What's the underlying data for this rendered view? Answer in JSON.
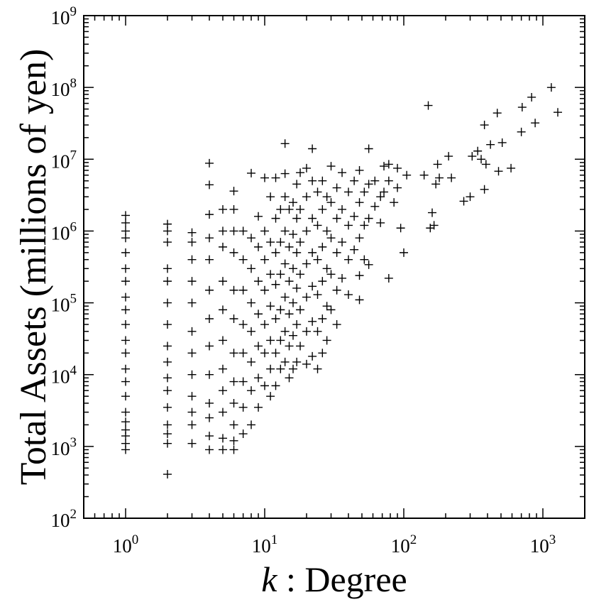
{
  "chart_data": {
    "type": "scatter",
    "title": "",
    "xlabel_var": "k",
    "xlabel_rest": " : Degree",
    "ylabel": "Total Assets (millions of yen)",
    "x_scale": "log",
    "y_scale": "log",
    "xlim": [
      0.5,
      2000
    ],
    "ylim": [
      100,
      1000000000
    ],
    "x_ticks": [
      {
        "base": "10",
        "exp": "0",
        "value": 1
      },
      {
        "base": "10",
        "exp": "1",
        "value": 10
      },
      {
        "base": "10",
        "exp": "2",
        "value": 100
      },
      {
        "base": "10",
        "exp": "3",
        "value": 1000
      }
    ],
    "y_ticks": [
      {
        "base": "10",
        "exp": "2",
        "value": 100
      },
      {
        "base": "10",
        "exp": "3",
        "value": 1000
      },
      {
        "base": "10",
        "exp": "4",
        "value": 10000
      },
      {
        "base": "10",
        "exp": "5",
        "value": 100000
      },
      {
        "base": "10",
        "exp": "6",
        "value": 1000000
      },
      {
        "base": "10",
        "exp": "7",
        "value": 10000000
      },
      {
        "base": "10",
        "exp": "8",
        "value": 100000000
      },
      {
        "base": "10",
        "exp": "9",
        "value": 1000000000
      }
    ],
    "marker": "+",
    "marker_color": "#000000",
    "grid": false,
    "legend": "none",
    "points": [
      [
        1,
        1700
      ],
      [
        1,
        1400
      ],
      [
        1,
        1100
      ],
      [
        1,
        900
      ],
      [
        1,
        1650000
      ],
      [
        1,
        1300000
      ],
      [
        1,
        1000000
      ],
      [
        1,
        800000
      ],
      [
        1,
        500000
      ],
      [
        1,
        300000
      ],
      [
        1,
        200000
      ],
      [
        1,
        120000
      ],
      [
        1,
        80000
      ],
      [
        1,
        50000
      ],
      [
        1,
        30000
      ],
      [
        1,
        20000
      ],
      [
        1,
        12000
      ],
      [
        1,
        8000
      ],
      [
        1,
        5000
      ],
      [
        1,
        3000
      ],
      [
        1,
        2200
      ],
      [
        2,
        410
      ],
      [
        2,
        1100
      ],
      [
        2,
        1500
      ],
      [
        2,
        2000
      ],
      [
        2,
        1250000
      ],
      [
        2,
        1000000
      ],
      [
        2,
        700000
      ],
      [
        2,
        300000
      ],
      [
        2,
        200000
      ],
      [
        2,
        100000
      ],
      [
        2,
        50000
      ],
      [
        2,
        25000
      ],
      [
        2,
        15000
      ],
      [
        2,
        9000
      ],
      [
        2,
        6000
      ],
      [
        2,
        3500
      ],
      [
        3,
        1100
      ],
      [
        3,
        2000
      ],
      [
        3,
        950000
      ],
      [
        3,
        700000
      ],
      [
        3,
        400000
      ],
      [
        3,
        200000
      ],
      [
        3,
        100000
      ],
      [
        3,
        40000
      ],
      [
        3,
        20000
      ],
      [
        3,
        10000
      ],
      [
        3,
        5000
      ],
      [
        3,
        3000
      ],
      [
        4,
        900
      ],
      [
        4,
        1400
      ],
      [
        4,
        8800000
      ],
      [
        4,
        4400000
      ],
      [
        4,
        1700000
      ],
      [
        4,
        800000
      ],
      [
        4,
        400000
      ],
      [
        4,
        150000
      ],
      [
        4,
        60000
      ],
      [
        4,
        25000
      ],
      [
        4,
        10000
      ],
      [
        4,
        4000
      ],
      [
        4,
        2500
      ],
      [
        5,
        900
      ],
      [
        5,
        1300
      ],
      [
        5,
        2000000
      ],
      [
        5,
        1000000
      ],
      [
        5,
        600000
      ],
      [
        5,
        200000
      ],
      [
        5,
        80000
      ],
      [
        5,
        30000
      ],
      [
        5,
        12000
      ],
      [
        5,
        6000
      ],
      [
        5,
        3000
      ],
      [
        6,
        900
      ],
      [
        6,
        1200
      ],
      [
        6,
        3600000
      ],
      [
        6,
        2000000
      ],
      [
        6,
        1000000
      ],
      [
        6,
        500000
      ],
      [
        6,
        150000
      ],
      [
        6,
        60000
      ],
      [
        6,
        20000
      ],
      [
        6,
        8000
      ],
      [
        6,
        4000
      ],
      [
        6,
        2000
      ],
      [
        7,
        1500
      ],
      [
        7,
        1000000
      ],
      [
        7,
        400000
      ],
      [
        7,
        150000
      ],
      [
        7,
        50000
      ],
      [
        7,
        20000
      ],
      [
        7,
        8000
      ],
      [
        7,
        3500
      ],
      [
        8,
        6400000
      ],
      [
        8,
        2000
      ],
      [
        8,
        800000
      ],
      [
        8,
        300000
      ],
      [
        8,
        100000
      ],
      [
        8,
        40000
      ],
      [
        8,
        15000
      ],
      [
        8,
        6000
      ],
      [
        9,
        1600000
      ],
      [
        9,
        600000
      ],
      [
        9,
        200000
      ],
      [
        9,
        70000
      ],
      [
        9,
        25000
      ],
      [
        9,
        9000
      ],
      [
        9,
        3500
      ],
      [
        10,
        5500000
      ],
      [
        10,
        1000000
      ],
      [
        10,
        400000
      ],
      [
        10,
        150000
      ],
      [
        10,
        50000
      ],
      [
        10,
        20000
      ],
      [
        10,
        7000
      ],
      [
        11,
        3000000
      ],
      [
        11,
        700000
      ],
      [
        11,
        250000
      ],
      [
        11,
        90000
      ],
      [
        11,
        30000
      ],
      [
        11,
        12000
      ],
      [
        11,
        5000
      ],
      [
        12,
        5500000
      ],
      [
        12,
        1500000
      ],
      [
        12,
        500000
      ],
      [
        12,
        180000
      ],
      [
        12,
        60000
      ],
      [
        12,
        20000
      ],
      [
        12,
        7000
      ],
      [
        13,
        2000000
      ],
      [
        13,
        700000
      ],
      [
        13,
        250000
      ],
      [
        13,
        80000
      ],
      [
        13,
        30000
      ],
      [
        13,
        12000
      ],
      [
        14,
        16500000
      ],
      [
        14,
        6300000
      ],
      [
        14,
        3000000
      ],
      [
        14,
        1000000
      ],
      [
        14,
        350000
      ],
      [
        14,
        120000
      ],
      [
        14,
        40000
      ],
      [
        14,
        15000
      ],
      [
        15,
        2000000
      ],
      [
        15,
        600000
      ],
      [
        15,
        200000
      ],
      [
        15,
        70000
      ],
      [
        15,
        25000
      ],
      [
        15,
        9000
      ],
      [
        16,
        2500000
      ],
      [
        16,
        900000
      ],
      [
        16,
        300000
      ],
      [
        16,
        100000
      ],
      [
        16,
        35000
      ],
      [
        16,
        12000
      ],
      [
        17,
        4500000
      ],
      [
        17,
        1500000
      ],
      [
        17,
        500000
      ],
      [
        17,
        160000
      ],
      [
        17,
        50000
      ],
      [
        17,
        15000
      ],
      [
        18,
        6500000
      ],
      [
        18,
        2000000
      ],
      [
        18,
        700000
      ],
      [
        18,
        250000
      ],
      [
        18,
        80000
      ],
      [
        18,
        25000
      ],
      [
        20,
        7500000
      ],
      [
        20,
        3000000
      ],
      [
        20,
        1000000
      ],
      [
        20,
        350000
      ],
      [
        20,
        120000
      ],
      [
        20,
        40000
      ],
      [
        20,
        14000
      ],
      [
        22,
        14000000
      ],
      [
        22,
        5000000
      ],
      [
        22,
        1500000
      ],
      [
        22,
        500000
      ],
      [
        22,
        170000
      ],
      [
        22,
        55000
      ],
      [
        22,
        18000
      ],
      [
        24,
        3500000
      ],
      [
        24,
        1200000
      ],
      [
        24,
        400000
      ],
      [
        24,
        130000
      ],
      [
        24,
        40000
      ],
      [
        24,
        12000
      ],
      [
        26,
        5000000
      ],
      [
        26,
        2000000
      ],
      [
        26,
        600000
      ],
      [
        26,
        200000
      ],
      [
        26,
        60000
      ],
      [
        26,
        20000
      ],
      [
        28,
        3000000
      ],
      [
        28,
        1000000
      ],
      [
        28,
        300000
      ],
      [
        28,
        90000
      ],
      [
        28,
        30000
      ],
      [
        30,
        8000000
      ],
      [
        30,
        2500000
      ],
      [
        30,
        800000
      ],
      [
        30,
        250000
      ],
      [
        30,
        80000
      ],
      [
        33,
        4000000
      ],
      [
        33,
        1500000
      ],
      [
        33,
        500000
      ],
      [
        33,
        150000
      ],
      [
        33,
        50000
      ],
      [
        36,
        6500000
      ],
      [
        36,
        2000000
      ],
      [
        36,
        700000
      ],
      [
        36,
        220000
      ],
      [
        40,
        3500000
      ],
      [
        40,
        1200000
      ],
      [
        40,
        400000
      ],
      [
        40,
        130000
      ],
      [
        44,
        5000000
      ],
      [
        44,
        1600000
      ],
      [
        44,
        550000
      ],
      [
        48,
        7000000
      ],
      [
        48,
        2500000
      ],
      [
        48,
        800000
      ],
      [
        48,
        240000
      ],
      [
        48,
        110000
      ],
      [
        52,
        3500000
      ],
      [
        52,
        1200000
      ],
      [
        52,
        400000
      ],
      [
        56,
        14000000
      ],
      [
        56,
        4500000
      ],
      [
        56,
        1500000
      ],
      [
        56,
        340000
      ],
      [
        62,
        5000000
      ],
      [
        62,
        2200000
      ],
      [
        68,
        3000000
      ],
      [
        68,
        1300000
      ],
      [
        72,
        8000000
      ],
      [
        72,
        3500000
      ],
      [
        78,
        8500000
      ],
      [
        78,
        5000000
      ],
      [
        78,
        220000
      ],
      [
        85,
        2500000
      ],
      [
        90,
        7500000
      ],
      [
        90,
        4000000
      ],
      [
        95,
        1100000
      ],
      [
        100,
        500000
      ],
      [
        105,
        6000000
      ],
      [
        140,
        6000000
      ],
      [
        150,
        56000000
      ],
      [
        155,
        1100000
      ],
      [
        160,
        1800000
      ],
      [
        165,
        1200000
      ],
      [
        170,
        4500000
      ],
      [
        175,
        8500000
      ],
      [
        180,
        5500000
      ],
      [
        210,
        11000000
      ],
      [
        220,
        5500000
      ],
      [
        270,
        2600000
      ],
      [
        300,
        3000000
      ],
      [
        310,
        11000000
      ],
      [
        340,
        13000000
      ],
      [
        360,
        10000000
      ],
      [
        380,
        3800000
      ],
      [
        380,
        30000000
      ],
      [
        390,
        8500000
      ],
      [
        420,
        16000000
      ],
      [
        470,
        44000000
      ],
      [
        480,
        6800000
      ],
      [
        510,
        17000000
      ],
      [
        590,
        7500000
      ],
      [
        700,
        24000000
      ],
      [
        710,
        53000000
      ],
      [
        830,
        73000000
      ],
      [
        880,
        32000000
      ],
      [
        1150,
        100000000
      ],
      [
        1280,
        45000000
      ]
    ]
  }
}
